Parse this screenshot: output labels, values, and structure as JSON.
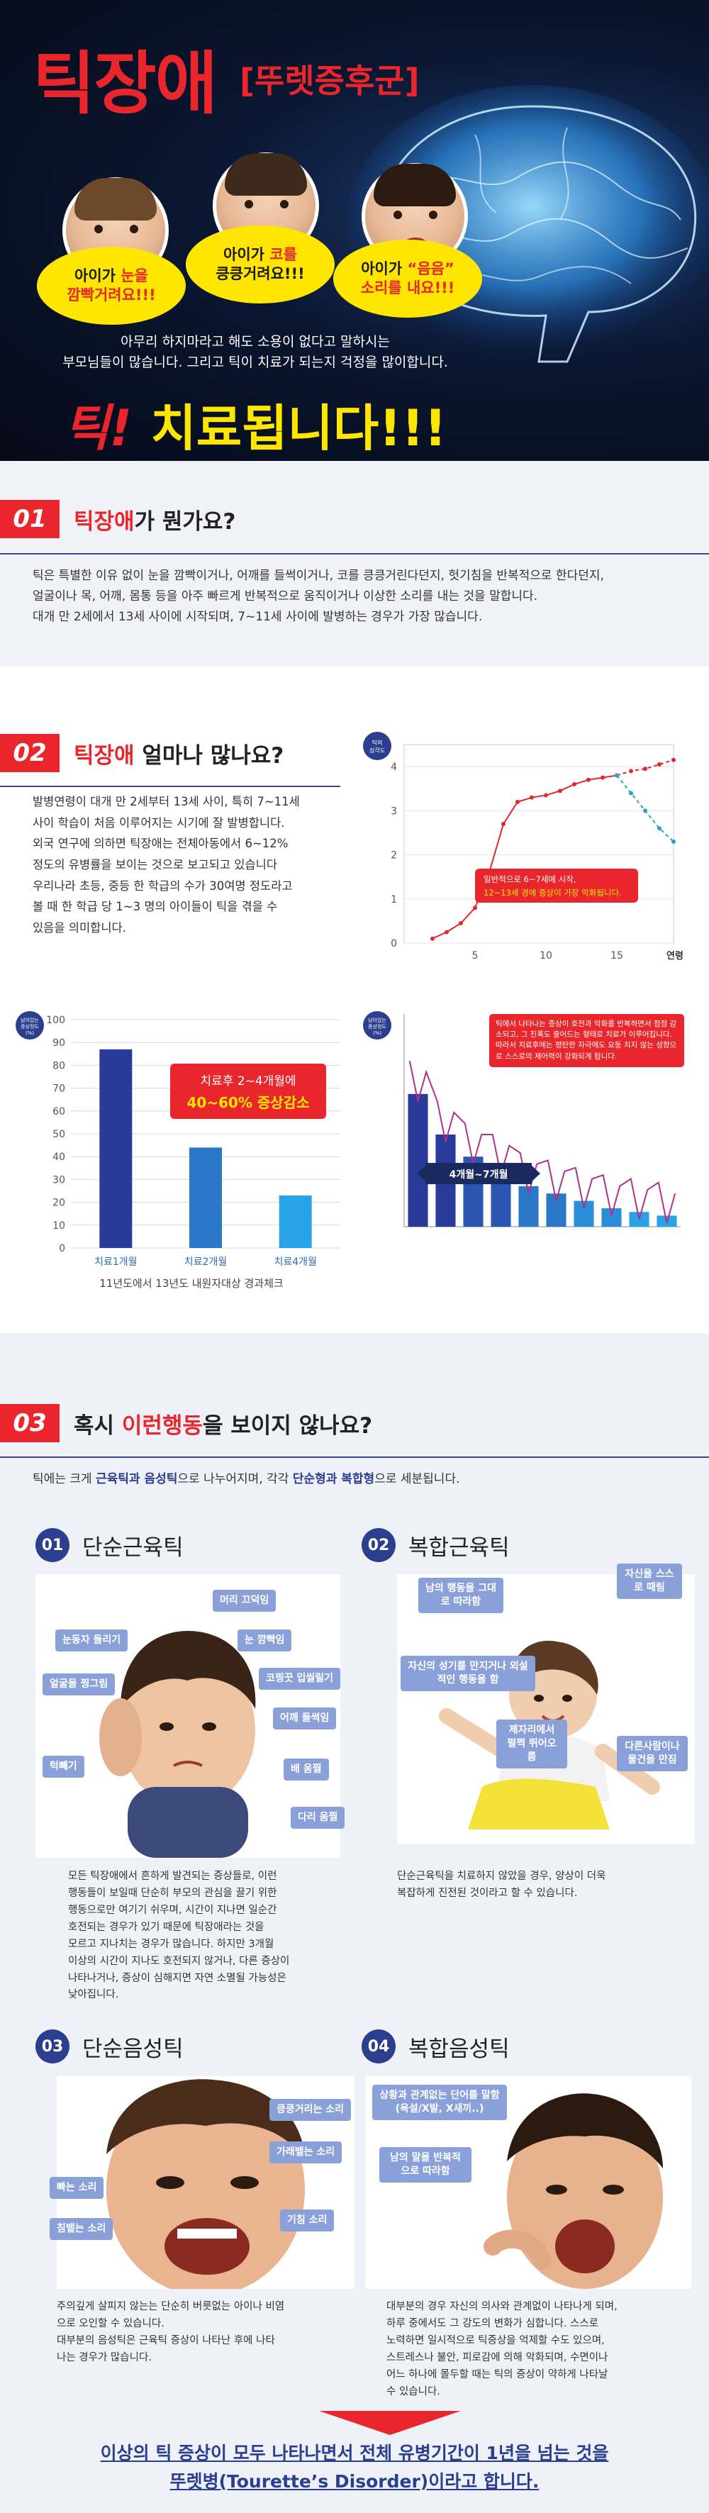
{
  "hero": {
    "title": "틱장애",
    "subtitle": "[뚜렛증후군]",
    "bubbles": [
      {
        "pre": "아이가 ",
        "hl": "눈을",
        "post": "깜빡거려요!!!"
      },
      {
        "pre": "아이가 ",
        "hl": "코를",
        "post": "킁킁거려요!!!"
      },
      {
        "pre": "아이가 ",
        "hl": "“음음”",
        "post": "소리를 내요!!!"
      }
    ],
    "desc_line1": "아무리 하지마라고 해도 소용이 없다고 말하시는",
    "desc_line2": "부모님들이 많습니다. 그리고 틱이 치료가 되는지 걱정을 많이합니다.",
    "cta_red": "틱!",
    "cta_yellow": "치료됩니다!!!"
  },
  "section1": {
    "num": "01",
    "title_red": "틱장애",
    "title_rest": "가 뭔가요?",
    "line1": "틱은 특별한 이유 없이 눈을 깜빡이거나, 어깨를 들썩이거나, 코를 킁킁거린다던지, 헛기침을 반복적으로 한다던지,",
    "line2": "얼굴이나 목, 어깨, 몸통 등을 아주 빠르게 반복적으로 움직이거나 이상한 소리를 내는 것을 말합니다.",
    "line3": "대개 만 2세에서 13세 사이에 시작되며, 7~11세 사이에 발병하는 경우가 가장 많습니다."
  },
  "section2": {
    "num": "02",
    "title_red": "틱장애",
    "title_rest": " 얼마나 많나요?",
    "para": [
      "발병연령이 대개 만 2세부터 13세 사이, 특히 7~11세",
      "사이 학습이 처음 이루어지는 시기에 잘 발병합니다.",
      "외국 연구에 의하면 틱장애는 전체아동에서  6~12%",
      "정도의 유병률을 보이는 것으로 보고되고 있습니다",
      "우리나라 초등, 중등 한 학급의 수가 30여명 정도라고",
      "볼 때 한 학급 당 1~3 명의 아이들이 틱을 겪을 수",
      "있음을 의미합니다."
    ]
  },
  "chart_data": [
    {
      "type": "line",
      "ylabel": "틱의 심각도",
      "xlabel": "연령",
      "x_ticks": [
        0,
        5,
        10,
        15
      ],
      "y_ticks": [
        0,
        1,
        2,
        3,
        4
      ],
      "xlim": [
        0,
        19
      ],
      "ylim": [
        0,
        4.5
      ],
      "series": [
        {
          "name": "",
          "x": [
            2,
            3,
            4,
            5,
            6,
            7,
            8,
            9,
            10,
            11,
            12,
            13,
            14,
            15
          ],
          "y": [
            0.1,
            0.25,
            0.45,
            0.8,
            1.6,
            2.7,
            3.2,
            3.3,
            3.35,
            3.45,
            3.6,
            3.7,
            3.75,
            3.8
          ]
        },
        {
          "name": "",
          "x": [
            15,
            16,
            17,
            18,
            19
          ],
          "y": [
            3.8,
            3.9,
            3.95,
            4.05,
            4.15
          ]
        },
        {
          "name": "",
          "x": [
            15,
            16,
            17,
            18,
            19
          ],
          "y": [
            3.8,
            3.4,
            3.0,
            2.6,
            2.3
          ]
        }
      ],
      "annotation_line1": "일반적으로 6~7세에 시작,",
      "annotation_line2": "12~13세 경에 증상이 가장 악화됩니다."
    },
    {
      "type": "bar",
      "ylabel": "남아있는 증상정도 (%)",
      "categories": [
        "치료1개월",
        "치료2개월",
        "치료4개월"
      ],
      "values": [
        87,
        44,
        23
      ],
      "y_ticks": [
        0,
        10,
        20,
        30,
        40,
        50,
        60,
        70,
        80,
        90,
        100
      ],
      "ylim": [
        0,
        100
      ],
      "colors": [
        "#2a3a9a",
        "#2a78c8",
        "#29a3e8"
      ],
      "badge_line1": "치료후 2~4개월에",
      "badge_line2": "40~60% 증상감소",
      "caption": "11년도에서 13년도 내원자대상 경과체크"
    },
    {
      "type": "bar",
      "ylabel": "남아있는 증상정도 (%)",
      "values": [
        72,
        50,
        38,
        32,
        22,
        18,
        14,
        10,
        8,
        6
      ],
      "ylim": [
        0,
        100
      ],
      "annotation": "틱에서 나타나는 증상이 호전과 악화를 반복하면서 점점 감소되고, 그 진폭도 줄어드는 형태로 치료가 이루어집니다. 따라서 치료후에는 평탄한 자극에도 요동 치지 않는 성향으로 스스로의 제어력이 강화되게 됩니다.",
      "range_label": "4개월~7개월"
    }
  ],
  "section3": {
    "num": "03",
    "title_pre": "혹시 ",
    "title_red": "이런행동",
    "title_post": "을 보이지 않나요?",
    "intro_pre": "틱에는 크게 ",
    "intro_b1": "근육틱과 음성틱",
    "intro_mid": "으로 나누어지며, 각각 ",
    "intro_b2": "단순형과 복합형",
    "intro_post": "으로 세분됩니다.",
    "cards": [
      {
        "num": "01",
        "title": "단순근육틱",
        "tags": [
          "머리 끄덕임",
          "눈동자 돌리기",
          "눈 깜빡임",
          "얼굴을 찡그림",
          "코찡끗 입씰릴기",
          "어깨 들썩임",
          "턱빼기",
          "배 움찔",
          "다리 움찔"
        ],
        "desc": [
          "모든 틱장애에서 흔하게 발견되는 증상들로, 이런",
          "행동들이 보일때 단순히 부모의 관심을 끌기 위한",
          "행동으로만 여기기 쉬우며, 시간이 지나면 일순간",
          "호전되는 경우가 있기 때문에 틱장애라는 것을",
          "모르고 지나치는 경우가 많습니다. 하지만 3개월",
          "이상의 시간이 지나도 호전되지 않거나, 다른 증상이",
          "나타나거나, 증상이 심해지면 자연 소멸될 가능성은",
          "낮아집니다."
        ]
      },
      {
        "num": "02",
        "title": "복합근육틱",
        "tags": [
          "남의 행동을 그대로 따라함",
          "자신을 스스로 때림",
          "자신의 성기를 만지거나 외설적인 행동을 함",
          "제자리에서 펄쩍 뛰어오름",
          "다른사람이나 물건을 만짐"
        ],
        "desc": [
          "단순근육틱을 치료하지 않았을 경우, 양상이 더욱",
          "복잡하게 진전된 것이라고 할 수 있습니다."
        ]
      },
      {
        "num": "03",
        "title": "단순음성틱",
        "tags": [
          "킁킁거리는 소리",
          "가래뱉는 소리",
          "빠는 소리",
          "침뱉는 소리",
          "기침 소리"
        ],
        "desc": [
          "주의깊게 살피지 않는는 단순히 버릇없는 아이나 비염",
          "으로 오인할 수 있습니다.",
          "대부분의 음성틱은 근육틱 증상이 나타난 후에 나타",
          "나는 경우가 많습니다."
        ]
      },
      {
        "num": "04",
        "title": "복합음성틱",
        "tags": [
          "상황과 관계없는 단어를 말함(욕설/X발, X새끼..)",
          "남의 말을 반복적으로 따라함"
        ],
        "desc": [
          "대부분의 경우 자신의 의사와 관계없이 나타나게 되며,",
          "하루 중에서도 그 강도의 변화가 심합니다. 스스로",
          "노력하면 일시적으로 틱증상을 억제할 수도 있으며,",
          "스트레스나 불안, 피로감에 의해 악화되며, 수면이나",
          "어느 하나에 몰두할 때는 틱의 증상이 약하게 나타날",
          "수 있습니다."
        ]
      }
    ],
    "final_line1": "이상의 틱 증상이 모두 나타나면서 전체 유병기간이 1년을 넘는 것을",
    "final_line2": "뚜렛병(Tourette’s Disorder)이라고 합니다."
  }
}
